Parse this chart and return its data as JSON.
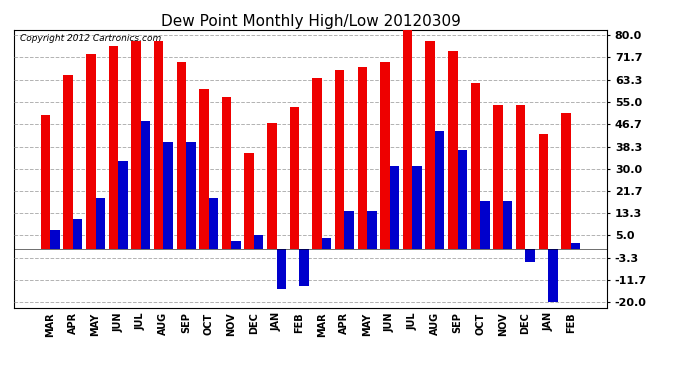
{
  "title": "Dew Point Monthly High/Low 20120309",
  "copyright": "Copyright 2012 Cartronics.com",
  "categories": [
    "MAR",
    "APR",
    "MAY",
    "JUN",
    "JUL",
    "AUG",
    "SEP",
    "OCT",
    "NOV",
    "DEC",
    "JAN",
    "FEB",
    "MAR",
    "APR",
    "MAY",
    "JUN",
    "JUL",
    "AUG",
    "SEP",
    "OCT",
    "NOV",
    "DEC",
    "JAN",
    "FEB"
  ],
  "highs": [
    50,
    65,
    73,
    76,
    78,
    78,
    70,
    60,
    57,
    36,
    47,
    53,
    64,
    67,
    68,
    70,
    82,
    78,
    74,
    62,
    54,
    54,
    43,
    51
  ],
  "lows": [
    7,
    11,
    19,
    33,
    48,
    40,
    40,
    19,
    3,
    5,
    -15,
    -14,
    4,
    14,
    14,
    31,
    31,
    44,
    37,
    18,
    18,
    -5,
    -20,
    2
  ],
  "bar_color_high": "#ee0000",
  "bar_color_low": "#0000cc",
  "yticks": [
    80.0,
    71.7,
    63.3,
    55.0,
    46.7,
    38.3,
    30.0,
    21.7,
    13.3,
    5.0,
    -3.3,
    -11.7,
    -20.0
  ],
  "ylim": [
    -22,
    82
  ],
  "background_color": "#ffffff",
  "grid_color": "#aaaaaa",
  "title_fontsize": 11,
  "bar_width": 0.42
}
